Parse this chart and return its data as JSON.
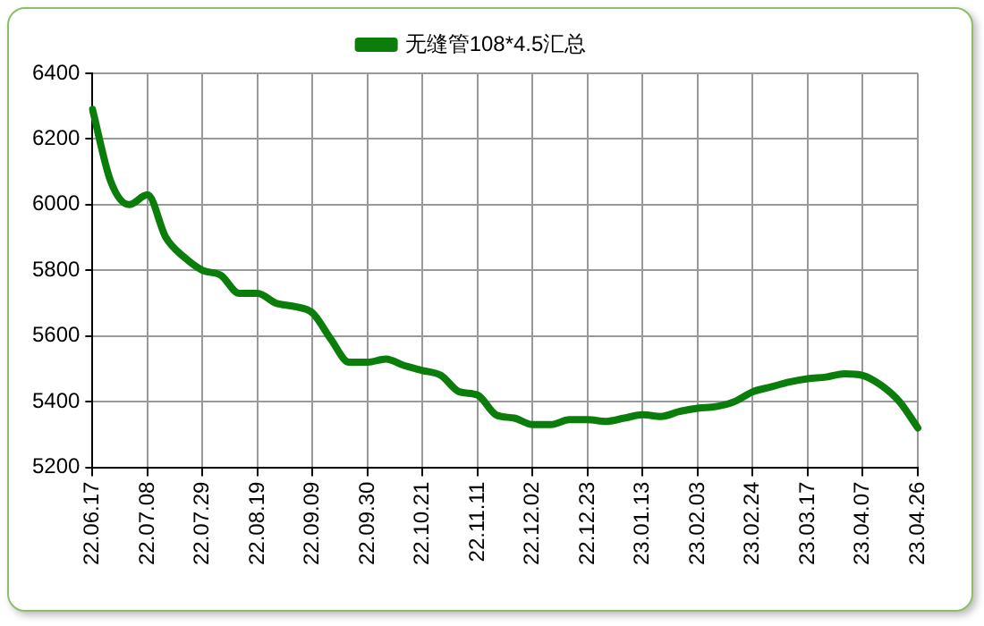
{
  "chart_data": {
    "type": "line",
    "categories": [
      "22.06.17",
      null,
      null,
      "22.07.08",
      null,
      null,
      "22.07.29",
      null,
      null,
      "22.08.19",
      null,
      null,
      "22.09.09",
      null,
      null,
      "22.09.30",
      null,
      null,
      "22.10.21",
      null,
      null,
      "22.11.11",
      null,
      null,
      "22.12.02",
      null,
      null,
      "22.12.23",
      null,
      null,
      "23.01.13",
      null,
      null,
      "23.02.03",
      null,
      null,
      "23.02.24",
      null,
      null,
      "23.03.17",
      null,
      null,
      "23.04.07",
      null,
      null,
      "23.04.26"
    ],
    "series": [
      {
        "name": "无缝管108*4.5汇总",
        "color": "#0a7d0a",
        "values": [
          6290,
          6070,
          6000,
          6030,
          5900,
          5840,
          5800,
          5785,
          5730,
          5730,
          5700,
          5690,
          5670,
          5590,
          5520,
          5520,
          5530,
          5510,
          5495,
          5480,
          5430,
          5420,
          5360,
          5350,
          5330,
          5330,
          5345,
          5345,
          5340,
          5350,
          5360,
          5355,
          5370,
          5380,
          5385,
          5400,
          5430,
          5445,
          5460,
          5470,
          5475,
          5485,
          5480,
          5450,
          5400,
          5320
        ]
      }
    ],
    "ylim": [
      5200,
      6400
    ],
    "yticks": [
      5200,
      5400,
      5600,
      5800,
      6000,
      6200,
      6400
    ],
    "grid": true,
    "legend": "top",
    "marker": "none",
    "line_style": "solid"
  }
}
